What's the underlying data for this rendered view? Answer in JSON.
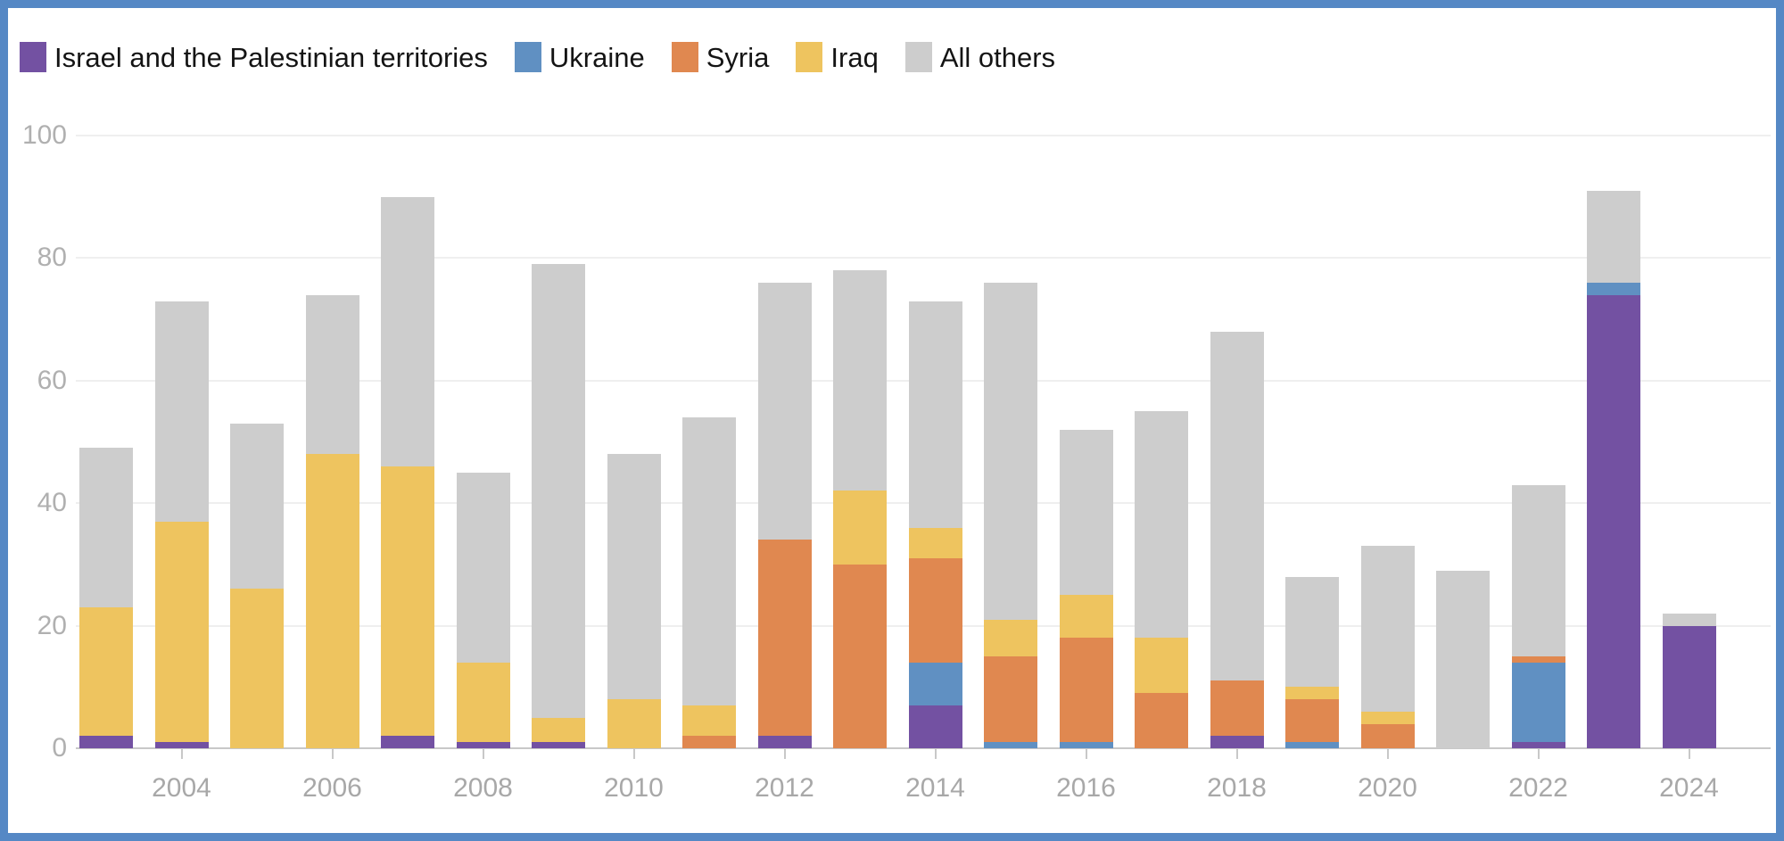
{
  "frame": {
    "border_color": "#5588c5"
  },
  "legend": {
    "items": [
      {
        "label": "Israel and the Palestinian territories",
        "color": "#7351a2"
      },
      {
        "label": "Ukraine",
        "color": "#6090c2"
      },
      {
        "label": "Syria",
        "color": "#e08850"
      },
      {
        "label": "Iraq",
        "color": "#eec45f"
      },
      {
        "label": "All others",
        "color": "#cdcdcd"
      }
    ]
  },
  "chart_data": {
    "type": "bar",
    "stacked": true,
    "title": "",
    "xlabel": "",
    "ylabel": "",
    "ylim": [
      0,
      100
    ],
    "y_ticks": [
      0,
      20,
      40,
      60,
      80,
      100
    ],
    "grid": "horizontal",
    "legend_position": "top-left",
    "categories": [
      2003,
      2004,
      2005,
      2006,
      2007,
      2008,
      2009,
      2010,
      2011,
      2012,
      2013,
      2014,
      2015,
      2016,
      2017,
      2018,
      2019,
      2020,
      2021,
      2022,
      2023,
      2024
    ],
    "x_tick_labels": [
      "2004",
      "2006",
      "2008",
      "2010",
      "2012",
      "2014",
      "2016",
      "2018",
      "2020",
      "2022",
      "2024"
    ],
    "x_tick_years": [
      2004,
      2006,
      2008,
      2010,
      2012,
      2014,
      2016,
      2018,
      2020,
      2022,
      2024
    ],
    "series": [
      {
        "name": "Israel and the Palestinian territories",
        "color": "#7351a2",
        "values": [
          2,
          1,
          0,
          0,
          2,
          1,
          1,
          0,
          0,
          2,
          0,
          7,
          0,
          0,
          0,
          2,
          0,
          0,
          0,
          1,
          74,
          20
        ]
      },
      {
        "name": "Ukraine",
        "color": "#6090c2",
        "values": [
          0,
          0,
          0,
          0,
          0,
          0,
          0,
          0,
          0,
          0,
          0,
          7,
          1,
          1,
          0,
          0,
          1,
          0,
          0,
          13,
          2,
          0
        ]
      },
      {
        "name": "Syria",
        "color": "#e08850",
        "values": [
          0,
          0,
          0,
          0,
          0,
          0,
          0,
          0,
          2,
          32,
          30,
          17,
          14,
          17,
          9,
          9,
          7,
          4,
          0,
          1,
          0,
          0
        ]
      },
      {
        "name": "Iraq",
        "color": "#eec45f",
        "values": [
          21,
          36,
          26,
          48,
          44,
          13,
          4,
          8,
          5,
          0,
          12,
          5,
          6,
          7,
          9,
          0,
          2,
          2,
          0,
          0,
          0,
          0
        ]
      },
      {
        "name": "All others",
        "color": "#cdcdcd",
        "values": [
          26,
          36,
          27,
          26,
          44,
          31,
          74,
          40,
          47,
          42,
          36,
          37,
          55,
          27,
          37,
          57,
          18,
          27,
          29,
          28,
          15,
          2
        ]
      }
    ],
    "totals": [
      49,
      73,
      53,
      74,
      90,
      45,
      79,
      48,
      54,
      76,
      78,
      73,
      76,
      52,
      55,
      68,
      28,
      33,
      29,
      43,
      91,
      22
    ]
  }
}
